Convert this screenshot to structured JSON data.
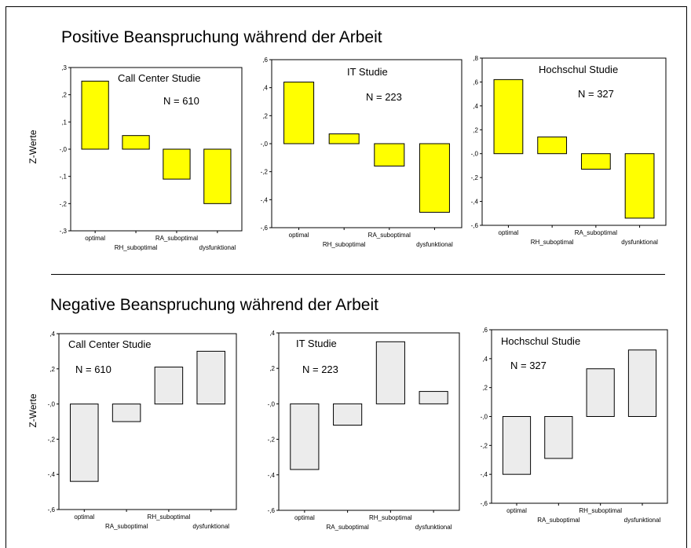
{
  "sections": {
    "positive_title": "Positive Beanspruchung während der Arbeit",
    "negative_title": "Negative Beanspruchung während der Arbeit"
  },
  "chart_data": [
    {
      "type": "bar",
      "group": "positive",
      "panel_title": "Call Center Studie",
      "n_label": "N = 610",
      "ylabel": "Z-Werte",
      "ylim": [
        -0.3,
        0.3
      ],
      "yticks": [
        0.3,
        0.2,
        0.1,
        0.0,
        -0.1,
        -0.2,
        -0.3
      ],
      "ytick_labels": [
        ",3",
        ",2",
        ",1",
        "-,0",
        "-,1",
        "-,2",
        "-,3"
      ],
      "categories": [
        "optimal",
        "RH_suboptimal",
        "RA_suboptimal",
        "dysfunktional"
      ],
      "values": [
        0.25,
        0.05,
        -0.11,
        -0.2
      ],
      "bar_color": "#ffff00"
    },
    {
      "type": "bar",
      "group": "positive",
      "panel_title": "IT Studie",
      "n_label": "N = 223",
      "ylabel": "",
      "ylim": [
        -0.6,
        0.6
      ],
      "yticks": [
        0.6,
        0.4,
        0.2,
        0.0,
        -0.2,
        -0.4,
        -0.6
      ],
      "ytick_labels": [
        ",6",
        ",4",
        ",2",
        "-,0",
        "-,2",
        "-,4",
        "-,6"
      ],
      "categories": [
        "optimal",
        "RH_suboptimal",
        "RA_suboptimal",
        "dysfunktional"
      ],
      "values": [
        0.44,
        0.07,
        -0.16,
        -0.49
      ],
      "bar_color": "#ffff00"
    },
    {
      "type": "bar",
      "group": "positive",
      "panel_title": "Hochschul Studie",
      "n_label": "N = 327",
      "ylabel": "",
      "ylim": [
        -0.6,
        0.8
      ],
      "yticks": [
        0.8,
        0.6,
        0.4,
        0.2,
        0.0,
        -0.2,
        -0.4,
        -0.6
      ],
      "ytick_labels": [
        ",8",
        ",6",
        ",4",
        ",2",
        "-,0",
        "-,2",
        "-,4",
        "-,6"
      ],
      "categories": [
        "optimal",
        "RH_suboptimal",
        "RA_suboptimal",
        "dysfunktional"
      ],
      "values": [
        0.62,
        0.14,
        -0.13,
        -0.54
      ],
      "bar_color": "#ffff00"
    },
    {
      "type": "bar",
      "group": "negative",
      "panel_title": "Call Center Studie",
      "n_label": "N = 610",
      "ylabel": "Z-Werte",
      "ylim": [
        -0.6,
        0.4
      ],
      "yticks": [
        0.4,
        0.2,
        0.0,
        -0.2,
        -0.4,
        -0.6
      ],
      "ytick_labels": [
        ",4",
        ",2",
        "-,0",
        "-,2",
        "-,4",
        "-,6"
      ],
      "categories": [
        "optimal",
        "RA_suboptimal",
        "RH_suboptimal",
        "dysfunktional"
      ],
      "values": [
        -0.44,
        -0.1,
        0.21,
        0.3
      ],
      "bar_color": "#ececec"
    },
    {
      "type": "bar",
      "group": "negative",
      "panel_title": "IT Studie",
      "n_label": "N = 223",
      "ylabel": "",
      "ylim": [
        -0.6,
        0.4
      ],
      "yticks": [
        0.4,
        0.2,
        0.0,
        -0.2,
        -0.4,
        -0.6
      ],
      "ytick_labels": [
        ",4",
        ",2",
        "-,0",
        "-,2",
        "-,4",
        "-,6"
      ],
      "categories": [
        "optimal",
        "RA_suboptimal",
        "RH_suboptimal",
        "dysfunktional"
      ],
      "values": [
        -0.37,
        -0.12,
        0.35,
        0.07
      ],
      "bar_color": "#ececec"
    },
    {
      "type": "bar",
      "group": "negative",
      "panel_title": "Hochschul Studie",
      "n_label": "N = 327",
      "ylabel": "",
      "ylim": [
        -0.6,
        0.6
      ],
      "yticks": [
        0.6,
        0.4,
        0.2,
        0.0,
        -0.2,
        -0.4,
        -0.6
      ],
      "ytick_labels": [
        ",6",
        ",4",
        ",2",
        "-,0",
        "-,2",
        "-,4",
        "-,6"
      ],
      "categories": [
        "optimal",
        "RA_suboptimal",
        "RH_suboptimal",
        "dysfunktional"
      ],
      "values": [
        -0.4,
        -0.29,
        0.33,
        0.46
      ],
      "bar_color": "#ececec"
    }
  ]
}
